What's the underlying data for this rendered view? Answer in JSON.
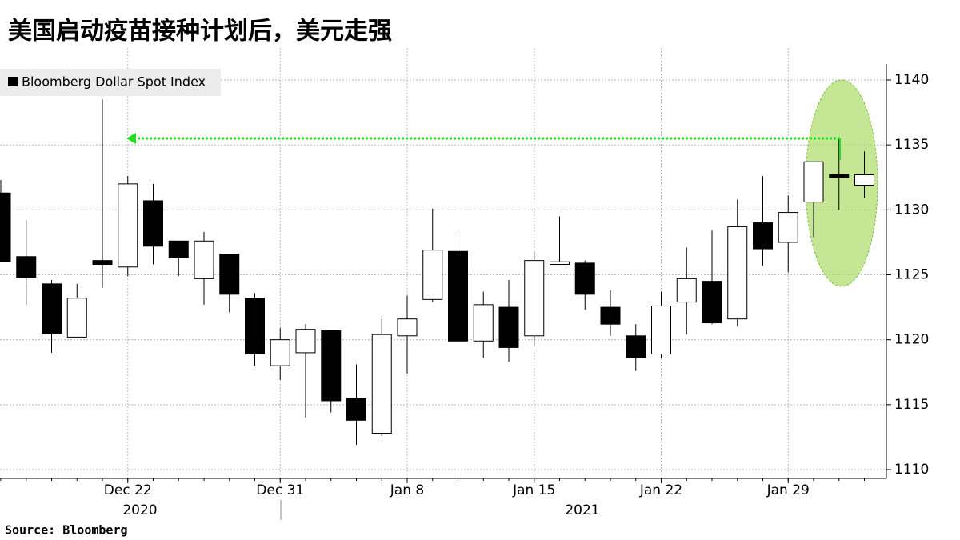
{
  "chart_data": {
    "type": "candlestick",
    "title": "美国启动疫苗接种计划后，美元走强",
    "source": "Source:  Bloomberg",
    "categories": [
      null,
      null,
      null,
      null,
      null,
      "Dec 22",
      null,
      null,
      null,
      null,
      null,
      "Dec 31",
      null,
      null,
      null,
      null,
      "Jan 8",
      null,
      null,
      null,
      null,
      "Jan 15",
      null,
      null,
      null,
      null,
      "Jan 22",
      null,
      null,
      null,
      null,
      "Jan 29",
      null,
      null,
      null
    ],
    "year_labels": [
      "2020",
      "2021"
    ],
    "series": [
      {
        "name": "Bloomberg Dollar Spot Index",
        "up_color": "#ffffff",
        "down_color": "#000000",
        "open": [
          1131.3,
          1126.4,
          1124.3,
          1120.2,
          1126.1,
          1125.6,
          1130.7,
          1127.6,
          1124.7,
          1126.6,
          1123.2,
          1118.0,
          1119.0,
          1120.7,
          1115.5,
          1112.8,
          1120.3,
          1123.1,
          1126.8,
          1119.9,
          1122.5,
          1120.3,
          1125.8,
          1125.9,
          1122.5,
          1120.3,
          1118.9,
          1122.9,
          1124.5,
          1121.6,
          1129.0,
          1127.5,
          1130.6,
          1132.7,
          1131.9
        ],
        "high": [
          1132.3,
          1129.2,
          1124.6,
          1124.3,
          1138.5,
          1132.6,
          1132.0,
          1127.6,
          1128.3,
          1126.6,
          1123.6,
          1120.9,
          1121.2,
          1120.7,
          1118.1,
          1121.6,
          1123.4,
          1130.1,
          1128.3,
          1123.7,
          1124.6,
          1126.8,
          1129.5,
          1126.1,
          1123.8,
          1121.2,
          1123.7,
          1127.1,
          1128.4,
          1130.8,
          1132.6,
          1131.1,
          1133.7,
          1135.5,
          1134.5
        ],
        "low": [
          1126.0,
          1122.7,
          1119.0,
          1120.2,
          1124.0,
          1124.9,
          1125.8,
          1124.9,
          1122.7,
          1122.1,
          1118.0,
          1116.9,
          1114.0,
          1114.4,
          1111.9,
          1112.6,
          1117.4,
          1122.9,
          1119.9,
          1118.6,
          1118.3,
          1119.5,
          1125.8,
          1122.3,
          1120.3,
          1117.6,
          1118.6,
          1120.4,
          1121.2,
          1121.0,
          1125.7,
          1125.2,
          1127.9,
          1130.0,
          1130.9
        ],
        "close": [
          1126.0,
          1124.8,
          1120.5,
          1123.2,
          1125.8,
          1132.0,
          1127.2,
          1126.3,
          1127.6,
          1123.5,
          1118.9,
          1120.0,
          1120.8,
          1115.3,
          1113.8,
          1120.4,
          1121.6,
          1126.9,
          1119.9,
          1122.7,
          1119.4,
          1126.1,
          1126.0,
          1123.5,
          1121.2,
          1118.6,
          1122.6,
          1124.7,
          1121.3,
          1128.7,
          1127.0,
          1129.8,
          1133.7,
          1132.5,
          1132.7
        ]
      }
    ],
    "ylim": [
      1110,
      1140
    ],
    "yticks": [
      1110,
      1115,
      1120,
      1125,
      1130,
      1135,
      1140
    ],
    "y_axis_side": "right",
    "grid": true
  }
}
